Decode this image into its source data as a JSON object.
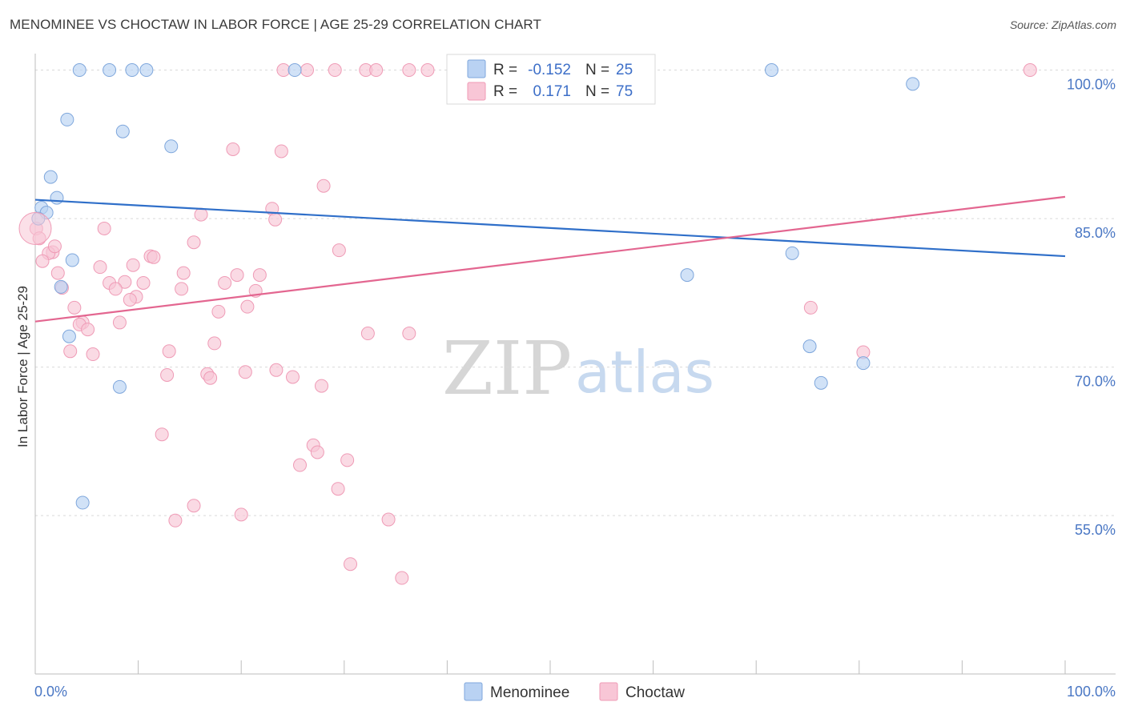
{
  "header": {
    "title": "MENOMINEE VS CHOCTAW IN LABOR FORCE | AGE 25-29 CORRELATION CHART",
    "source": "Source: ZipAtlas.com"
  },
  "watermark": {
    "zip": "ZIP",
    "atlas": "atlas"
  },
  "colors": {
    "blue_fill": "#b9d2f3",
    "blue_stroke": "#7fa7dc",
    "blue_line": "#2f6fc9",
    "pink_fill": "#f8c6d6",
    "pink_stroke": "#ef9bb6",
    "pink_line": "#e36690",
    "axis_label": "#4a77c4",
    "grid": "#d9d9d9"
  },
  "stats": {
    "r_label": "R =",
    "n_label": "N =",
    "rows": [
      {
        "series": "Menominee",
        "r": "-0.152",
        "n": "25"
      },
      {
        "series": "Choctaw",
        "r": "0.171",
        "n": "75"
      }
    ]
  },
  "legend": [
    "Menominee",
    "Choctaw"
  ],
  "chart_data": {
    "type": "scatter",
    "title": "MENOMINEE VS CHOCTAW IN LABOR FORCE | AGE 25-29 CORRELATION CHART",
    "xlabel": "",
    "ylabel": "In Labor Force | Age 25-29",
    "xlim": [
      0,
      100
    ],
    "ylim": [
      39,
      101.5
    ],
    "x_tick_labels": [
      "0.0%",
      "100.0%"
    ],
    "y_ticks": [
      55,
      70,
      85,
      100
    ],
    "y_tick_labels": [
      "55.0%",
      "70.0%",
      "85.0%",
      "100.0%"
    ],
    "grid": true,
    "series": [
      {
        "name": "Menominee",
        "r": -0.152,
        "n": 25,
        "trend": [
          [
            0,
            86.9
          ],
          [
            100,
            81.2
          ]
        ],
        "points": [
          [
            4.3,
            100.0
          ],
          [
            7.2,
            100.0
          ],
          [
            9.4,
            100.0
          ],
          [
            10.8,
            100.0
          ],
          [
            25.2,
            100.0
          ],
          [
            71.5,
            100.0
          ],
          [
            85.2,
            98.6
          ],
          [
            3.1,
            95.0
          ],
          [
            8.5,
            93.8
          ],
          [
            13.2,
            92.3
          ],
          [
            1.5,
            89.2
          ],
          [
            2.1,
            87.1
          ],
          [
            0.6,
            86.1
          ],
          [
            1.1,
            85.6
          ],
          [
            0.3,
            85.0
          ],
          [
            3.6,
            80.8
          ],
          [
            2.5,
            78.1
          ],
          [
            3.3,
            73.1
          ],
          [
            63.3,
            79.3
          ],
          [
            73.5,
            81.5
          ],
          [
            75.2,
            72.1
          ],
          [
            80.4,
            70.4
          ],
          [
            76.3,
            68.4
          ],
          [
            8.2,
            68.0
          ],
          [
            4.6,
            56.3
          ]
        ]
      },
      {
        "name": "Choctaw",
        "r": 0.171,
        "n": 75,
        "trend": [
          [
            0,
            74.6
          ],
          [
            100,
            87.2
          ]
        ],
        "points": [
          [
            24.1,
            100.0
          ],
          [
            26.4,
            100.0
          ],
          [
            29.1,
            100.0
          ],
          [
            32.1,
            100.0
          ],
          [
            33.1,
            100.0
          ],
          [
            36.3,
            100.0
          ],
          [
            38.1,
            100.0
          ],
          [
            96.6,
            100.0
          ],
          [
            19.2,
            92.0
          ],
          [
            23.9,
            91.8
          ],
          [
            28.0,
            88.3
          ],
          [
            23.0,
            86.0
          ],
          [
            16.1,
            85.4
          ],
          [
            23.3,
            84.9
          ],
          [
            6.7,
            84.0
          ],
          [
            15.4,
            82.6
          ],
          [
            29.5,
            81.8
          ],
          [
            1.7,
            81.6
          ],
          [
            1.3,
            81.5
          ],
          [
            11.2,
            81.2
          ],
          [
            11.5,
            81.1
          ],
          [
            0.7,
            80.7
          ],
          [
            9.5,
            80.3
          ],
          [
            6.3,
            80.1
          ],
          [
            14.4,
            79.5
          ],
          [
            2.2,
            79.5
          ],
          [
            19.6,
            79.3
          ],
          [
            21.8,
            79.3
          ],
          [
            7.2,
            78.5
          ],
          [
            8.7,
            78.6
          ],
          [
            10.5,
            78.5
          ],
          [
            18.4,
            78.5
          ],
          [
            2.6,
            78.0
          ],
          [
            7.8,
            77.9
          ],
          [
            14.2,
            77.9
          ],
          [
            21.4,
            77.7
          ],
          [
            9.8,
            77.1
          ],
          [
            9.2,
            76.8
          ],
          [
            20.6,
            76.1
          ],
          [
            3.8,
            76.0
          ],
          [
            17.8,
            75.6
          ],
          [
            75.3,
            76.0
          ],
          [
            8.2,
            74.5
          ],
          [
            4.6,
            74.5
          ],
          [
            4.3,
            74.3
          ],
          [
            5.1,
            73.8
          ],
          [
            32.3,
            73.4
          ],
          [
            36.3,
            73.4
          ],
          [
            17.4,
            72.4
          ],
          [
            3.4,
            71.6
          ],
          [
            5.6,
            71.3
          ],
          [
            13.0,
            71.6
          ],
          [
            80.4,
            71.5
          ],
          [
            23.4,
            69.7
          ],
          [
            20.4,
            69.5
          ],
          [
            16.7,
            69.3
          ],
          [
            12.8,
            69.2
          ],
          [
            17.0,
            68.9
          ],
          [
            25.0,
            69.0
          ],
          [
            27.8,
            68.1
          ],
          [
            12.3,
            63.2
          ],
          [
            27.0,
            62.1
          ],
          [
            27.4,
            61.4
          ],
          [
            30.3,
            60.6
          ],
          [
            25.7,
            60.1
          ],
          [
            29.4,
            57.7
          ],
          [
            15.4,
            56.0
          ],
          [
            20.0,
            55.1
          ],
          [
            34.3,
            54.6
          ],
          [
            13.6,
            54.5
          ],
          [
            30.6,
            50.1
          ],
          [
            35.6,
            48.7
          ],
          [
            0.1,
            84.0
          ],
          [
            0.4,
            83.0
          ],
          [
            1.9,
            82.2
          ]
        ]
      }
    ]
  }
}
